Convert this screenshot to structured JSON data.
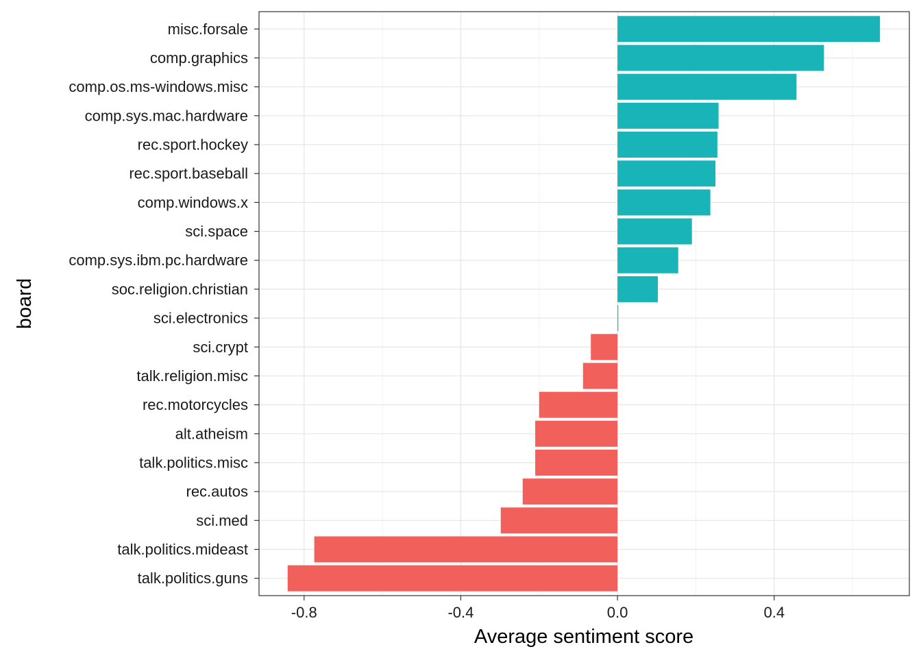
{
  "chart_data": {
    "type": "bar",
    "orientation": "horizontal",
    "xlabel": "Average sentiment score",
    "ylabel": "board",
    "xlim": [
      -0.915,
      0.745
    ],
    "x_ticks": [
      -0.8,
      -0.4,
      0.0,
      0.4
    ],
    "x_tick_labels": [
      "-0.8",
      "-0.4",
      "0.0",
      "0.4"
    ],
    "grid": true,
    "colors": {
      "positive": "#19B4B8",
      "negative": "#F2605C"
    },
    "categories": [
      "misc.forsale",
      "comp.graphics",
      "comp.os.ms-windows.misc",
      "comp.sys.mac.hardware",
      "rec.sport.hockey",
      "rec.sport.baseball",
      "comp.windows.x",
      "sci.space",
      "comp.sys.ibm.pc.hardware",
      "soc.religion.christian",
      "sci.electronics",
      "sci.crypt",
      "talk.religion.misc",
      "rec.motorcycles",
      "alt.atheism",
      "talk.politics.misc",
      "rec.autos",
      "sci.med",
      "talk.politics.mideast",
      "talk.politics.guns"
    ],
    "values": [
      0.67,
      0.527,
      0.457,
      0.258,
      0.255,
      0.25,
      0.237,
      0.19,
      0.155,
      0.103,
      0.002,
      -0.068,
      -0.088,
      -0.2,
      -0.21,
      -0.21,
      -0.242,
      -0.298,
      -0.774,
      -0.842
    ]
  }
}
